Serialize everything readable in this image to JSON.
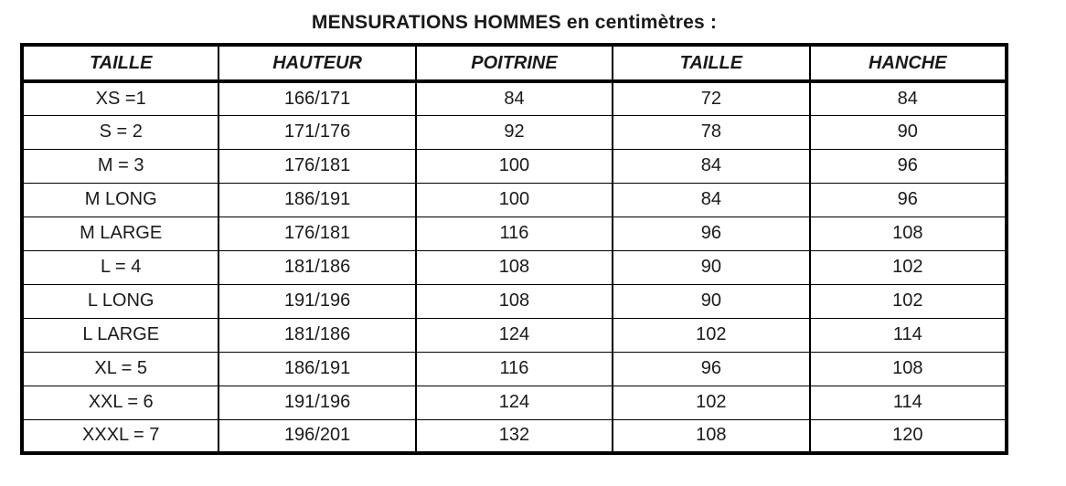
{
  "page": {
    "title": "MENSURATIONS HOMMES en centimètres :"
  },
  "table": {
    "headers": [
      "TAILLE",
      "HAUTEUR",
      "POITRINE",
      "TAILLE",
      "HANCHE"
    ],
    "rows": [
      [
        "XS =1",
        "166/171",
        "84",
        "72",
        "84"
      ],
      [
        "S = 2",
        "171/176",
        "92",
        "78",
        "90"
      ],
      [
        "M = 3",
        "176/181",
        "100",
        "84",
        "96"
      ],
      [
        "M LONG",
        "186/191",
        "100",
        "84",
        "96"
      ],
      [
        "M LARGE",
        "176/181",
        "116",
        "96",
        "108"
      ],
      [
        "L = 4",
        "181/186",
        "108",
        "90",
        "102"
      ],
      [
        "L LONG",
        "191/196",
        "108",
        "90",
        "102"
      ],
      [
        "L LARGE",
        "181/186",
        "124",
        "102",
        "114"
      ],
      [
        "XL = 5",
        "186/191",
        "116",
        "96",
        "108"
      ],
      [
        "XXL = 6",
        "191/196",
        "124",
        "102",
        "114"
      ],
      [
        "XXXL = 7",
        "196/201",
        "132",
        "108",
        "120"
      ]
    ],
    "colors": {
      "border": "#000000",
      "text": "#1a1a1a",
      "background": "#ffffff"
    }
  }
}
